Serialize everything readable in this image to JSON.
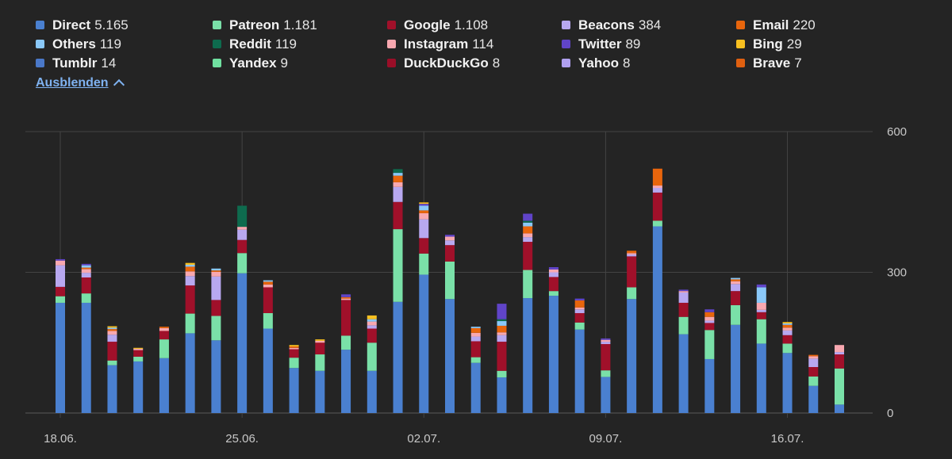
{
  "legend": {
    "items": [
      {
        "name": "Direct",
        "value": "5.165",
        "color": "#4a80d0"
      },
      {
        "name": "Patreon",
        "value": "1.181",
        "color": "#7ae0a8"
      },
      {
        "name": "Google",
        "value": "1.108",
        "color": "#a0102a"
      },
      {
        "name": "Beacons",
        "value": "384",
        "color": "#b8a8f0"
      },
      {
        "name": "Email",
        "value": "220",
        "color": "#e8650c"
      },
      {
        "name": "Others",
        "value": "119",
        "color": "#8ac8f8"
      },
      {
        "name": "Reddit",
        "value": "119",
        "color": "#0e6b4e"
      },
      {
        "name": "Instagram",
        "value": "114",
        "color": "#f8a8b0"
      },
      {
        "name": "Twitter",
        "value": "89",
        "color": "#6044c8"
      },
      {
        "name": "Bing",
        "value": "29",
        "color": "#f8c020"
      },
      {
        "name": "Tumblr",
        "value": "14",
        "color": "#4a78c8"
      },
      {
        "name": "Yandex",
        "value": "9",
        "color": "#70e0a0"
      },
      {
        "name": "DuckDuckGo",
        "value": "8",
        "color": "#9a0e28"
      },
      {
        "name": "Yahoo",
        "value": "8",
        "color": "#b0a0f0"
      },
      {
        "name": "Brave",
        "value": "7",
        "color": "#e06010"
      }
    ],
    "hide_label": "Ausblenden"
  },
  "chart_data": {
    "type": "bar",
    "stacked": true,
    "ylim": [
      0,
      600
    ],
    "yticks": [
      "0",
      "300",
      "600"
    ],
    "x_tick_labels": [
      {
        "index": 0,
        "label": "18.06."
      },
      {
        "index": 7,
        "label": "25.06."
      },
      {
        "index": 14,
        "label": "02.07."
      },
      {
        "index": 21,
        "label": "09.07."
      },
      {
        "index": 28,
        "label": "16.07."
      }
    ],
    "series_order": [
      "Direct",
      "Patreon",
      "Google",
      "Beacons",
      "Instagram",
      "Email",
      "Others",
      "Reddit",
      "Twitter",
      "Bing"
    ],
    "days": [
      {
        "Direct": 235,
        "Patreon": 14,
        "Google": 20,
        "Beacons": 46,
        "Instagram": 10,
        "Twitter": 3
      },
      {
        "Direct": 235,
        "Patreon": 20,
        "Google": 34,
        "Beacons": 10,
        "Instagram": 8,
        "Others": 5,
        "Email": 3,
        "Twitter": 3
      },
      {
        "Direct": 102,
        "Patreon": 10,
        "Google": 40,
        "Beacons": 15,
        "Instagram": 8,
        "Email": 4,
        "Others": 3,
        "Bing": 3
      },
      {
        "Direct": 110,
        "Patreon": 10,
        "Google": 14,
        "Instagram": 3,
        "Bing": 2
      },
      {
        "Direct": 117,
        "Patreon": 40,
        "Google": 18,
        "Instagram": 6,
        "Email": 3
      },
      {
        "Direct": 170,
        "Patreon": 42,
        "Google": 60,
        "Beacons": 20,
        "Instagram": 10,
        "Email": 10,
        "Others": 4,
        "Bing": 4
      },
      {
        "Direct": 155,
        "Patreon": 52,
        "Google": 34,
        "Beacons": 50,
        "Instagram": 10,
        "Others": 4,
        "Email": 3
      },
      {
        "Direct": 298,
        "Patreon": 43,
        "Google": 28,
        "Beacons": 22,
        "Instagram": 6,
        "Reddit": 45
      },
      {
        "Direct": 180,
        "Patreon": 33,
        "Google": 55,
        "Instagram": 6,
        "Email": 6,
        "Others": 3
      },
      {
        "Direct": 96,
        "Patreon": 22,
        "Google": 18,
        "Instagram": 3,
        "Email": 3,
        "Bing": 3
      },
      {
        "Direct": 90,
        "Patreon": 35,
        "Google": 25,
        "Instagram": 4,
        "Bing": 3
      },
      {
        "Direct": 135,
        "Patreon": 30,
        "Google": 76,
        "Instagram": 3,
        "Email": 3,
        "Twitter": 6
      },
      {
        "Direct": 90,
        "Patreon": 60,
        "Google": 30,
        "Beacons": 7,
        "Instagram": 8,
        "Bing": 8,
        "Others": 5
      },
      {
        "Direct": 237,
        "Patreon": 155,
        "Google": 58,
        "Beacons": 32,
        "Instagram": 10,
        "Email": 14,
        "Others": 6,
        "Reddit": 8
      },
      {
        "Direct": 295,
        "Patreon": 45,
        "Google": 33,
        "Beacons": 40,
        "Instagram": 13,
        "Others": 10,
        "Email": 6,
        "Twitter": 4,
        "Bing": 3
      },
      {
        "Direct": 243,
        "Patreon": 80,
        "Google": 35,
        "Beacons": 10,
        "Instagram": 8,
        "Twitter": 4
      },
      {
        "Direct": 107,
        "Patreon": 12,
        "Google": 34,
        "Beacons": 10,
        "Instagram": 8,
        "Email": 10,
        "Others": 3
      },
      {
        "Direct": 76,
        "Patreon": 14,
        "Google": 62,
        "Beacons": 14,
        "Instagram": 6,
        "Email": 14,
        "Others": 10,
        "Reddit": 4,
        "Twitter": 33
      },
      {
        "Direct": 245,
        "Patreon": 60,
        "Google": 60,
        "Beacons": 10,
        "Instagram": 8,
        "Email": 15,
        "Others": 8,
        "Reddit": 4,
        "Twitter": 15
      },
      {
        "Direct": 250,
        "Patreon": 10,
        "Google": 30,
        "Beacons": 10,
        "Instagram": 6,
        "Twitter": 5
      },
      {
        "Direct": 178,
        "Patreon": 15,
        "Google": 20,
        "Beacons": 8,
        "Instagram": 4,
        "Email": 15,
        "Twitter": 4
      },
      {
        "Direct": 77,
        "Patreon": 14,
        "Google": 56,
        "Beacons": 5,
        "Instagram": 4,
        "Twitter": 3
      },
      {
        "Direct": 243,
        "Patreon": 25,
        "Google": 66,
        "Beacons": 4,
        "Instagram": 3,
        "Email": 5
      },
      {
        "Direct": 398,
        "Patreon": 12,
        "Google": 60,
        "Beacons": 10,
        "Email": 36,
        "Instagram": 5
      },
      {
        "Direct": 168,
        "Patreon": 37,
        "Google": 30,
        "Beacons": 22,
        "Instagram": 3,
        "Twitter": 3
      },
      {
        "Direct": 115,
        "Patreon": 62,
        "Google": 15,
        "Beacons": 5,
        "Instagram": 8,
        "Email": 10,
        "Twitter": 6
      },
      {
        "Direct": 188,
        "Patreon": 42,
        "Google": 30,
        "Beacons": 15,
        "Instagram": 6,
        "Email": 4,
        "Others": 3
      },
      {
        "Direct": 148,
        "Patreon": 52,
        "Google": 15,
        "Beacons": 5,
        "Instagram": 15,
        "Others": 33,
        "Twitter": 6
      },
      {
        "Direct": 128,
        "Patreon": 20,
        "Google": 18,
        "Beacons": 10,
        "Instagram": 6,
        "Email": 6,
        "Others": 3,
        "Bing": 3
      },
      {
        "Direct": 58,
        "Patreon": 20,
        "Google": 20,
        "Beacons": 18,
        "Instagram": 5,
        "Email": 3
      },
      {
        "Direct": 18,
        "Patreon": 77,
        "Google": 30,
        "Beacons": 5,
        "Instagram": 15
      }
    ]
  }
}
